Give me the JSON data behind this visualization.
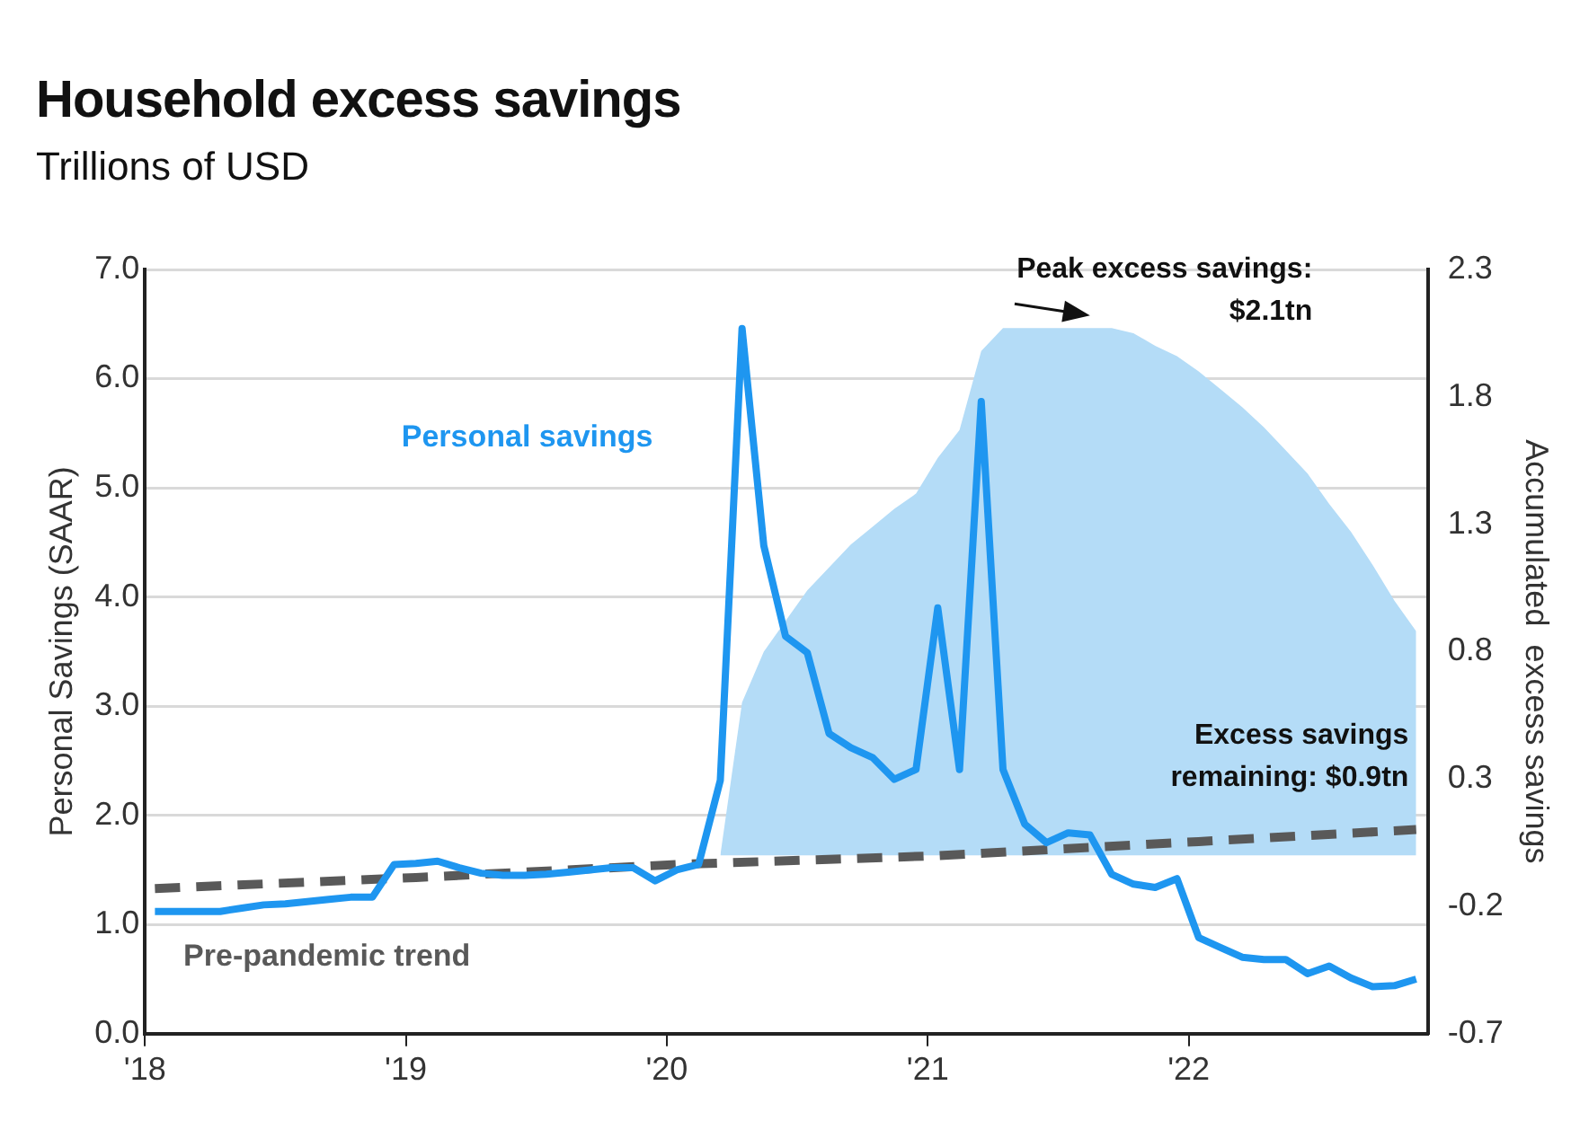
{
  "chart_data": {
    "type": "line",
    "title": "Household excess savings",
    "subtitle": "Trillions of USD",
    "ylabel": "Personal Savings (SAAR)",
    "y2label": "Accumulated  excess savings",
    "x": [
      "2018-01-15",
      "2018-02-15",
      "2018-03-15",
      "2018-04-15",
      "2018-05-15",
      "2018-06-15",
      "2018-07-15",
      "2018-08-15",
      "2018-09-15",
      "2018-10-15",
      "2018-11-15",
      "2018-12-15",
      "2019-01-15",
      "2019-02-15",
      "2019-03-15",
      "2019-04-15",
      "2019-05-15",
      "2019-06-15",
      "2019-07-15",
      "2019-08-15",
      "2019-09-15",
      "2019-10-15",
      "2019-11-15",
      "2019-12-15",
      "2020-01-15",
      "2020-02-15",
      "2020-03-15",
      "2020-04-15",
      "2020-05-15",
      "2020-06-15",
      "2020-07-15",
      "2020-08-15",
      "2020-09-15",
      "2020-10-15",
      "2020-11-15",
      "2020-12-15",
      "2021-01-15",
      "2021-02-15",
      "2021-03-15",
      "2021-04-15",
      "2021-05-15",
      "2021-06-15",
      "2021-07-15",
      "2021-08-15",
      "2021-09-15",
      "2021-10-15",
      "2021-11-15",
      "2021-12-15",
      "2022-01-15",
      "2022-02-15",
      "2022-03-15",
      "2022-04-15",
      "2022-05-15",
      "2022-06-15",
      "2022-07-15",
      "2022-08-15",
      "2022-09-15",
      "2022-10-15",
      "2022-11-15"
    ],
    "series": [
      {
        "type": "area",
        "axis": "y2",
        "color": "#b4dcf7",
        "x": [
          "2020-03-15",
          "2020-04-15",
          "2020-05-15",
          "2020-06-15",
          "2020-07-15",
          "2020-08-15",
          "2020-09-15",
          "2020-10-15",
          "2020-11-15",
          "2020-12-15",
          "2021-01-15",
          "2021-02-15",
          "2021-03-15",
          "2021-04-15",
          "2021-05-15",
          "2021-06-15",
          "2021-07-15",
          "2021-08-15",
          "2021-09-15",
          "2021-10-15",
          "2021-11-15",
          "2021-12-15",
          "2022-01-15",
          "2022-02-15",
          "2022-03-15",
          "2022-04-15",
          "2022-05-15",
          "2022-06-15",
          "2022-07-15",
          "2022-08-15",
          "2022-09-15",
          "2022-10-15",
          "2022-11-15"
        ],
        "values": [
          0,
          0.6,
          0.8,
          0.92,
          1.04,
          1.13,
          1.22,
          1.29,
          1.36,
          1.42,
          1.56,
          1.67,
          1.98,
          2.07,
          2.07,
          2.07,
          2.07,
          2.07,
          2.07,
          2.05,
          2.0,
          1.96,
          1.9,
          1.83,
          1.76,
          1.68,
          1.59,
          1.5,
          1.38,
          1.27,
          1.14,
          1.0,
          0.88
        ]
      },
      {
        "type": "line",
        "name": "Pre-pandemic trend",
        "color": "#595959",
        "line_style": "dashed",
        "x": [
          "2018-01-15",
          "2019-01-15",
          "2020-01-15",
          "2021-01-15",
          "2022-01-15",
          "2022-11-15"
        ],
        "values": [
          1.33,
          1.43,
          1.55,
          1.63,
          1.76,
          1.87
        ]
      },
      {
        "type": "line",
        "name": "Personal savings",
        "color": "#1e96f0",
        "line_style": "solid",
        "values": [
          1.12,
          1.12,
          1.12,
          1.12,
          1.15,
          1.18,
          1.19,
          1.21,
          1.23,
          1.25,
          1.25,
          1.55,
          1.56,
          1.58,
          1.52,
          1.47,
          1.45,
          1.45,
          1.46,
          1.48,
          1.5,
          1.52,
          1.52,
          1.4,
          1.5,
          1.55,
          2.32,
          6.46,
          4.47,
          3.64,
          3.49,
          2.75,
          2.62,
          2.53,
          2.33,
          2.42,
          3.9,
          2.42,
          5.79,
          2.42,
          1.92,
          1.75,
          1.84,
          1.82,
          1.46,
          1.37,
          1.34,
          1.42,
          0.88,
          0.79,
          0.7,
          0.68,
          0.68,
          0.55,
          0.62,
          0.51,
          0.43,
          0.44,
          0.5
        ]
      }
    ],
    "xlim": [
      "2018-01-01",
      "2022-12-01"
    ],
    "xticks": [
      {
        "value": "2018-01-01",
        "label": "'18"
      },
      {
        "value": "2019-01-01",
        "label": "'19"
      },
      {
        "value": "2020-01-01",
        "label": "'20"
      },
      {
        "value": "2021-01-01",
        "label": "'21"
      },
      {
        "value": "2022-01-01",
        "label": "'22"
      }
    ],
    "ylim": [
      0,
      7
    ],
    "yticks": [
      {
        "value": 0,
        "label": "0.0"
      },
      {
        "value": 1,
        "label": "1.0"
      },
      {
        "value": 2,
        "label": "2.0"
      },
      {
        "value": 3,
        "label": "3.0"
      },
      {
        "value": 4,
        "label": "4.0"
      },
      {
        "value": 5,
        "label": "5.0"
      },
      {
        "value": 6,
        "label": "6.0"
      },
      {
        "value": 7,
        "label": "7.0"
      }
    ],
    "y2lim": [
      -0.7,
      2.3
    ],
    "y2ticks": [
      -0.7,
      -0.2,
      0.3,
      0.8,
      1.3,
      1.8,
      2.3
    ],
    "annotations": [
      "Peak excess savings: $2.1tn",
      "Excess savings remaining: $0.9tn"
    ],
    "grid": "y",
    "legend": false,
    "marker": "none"
  }
}
